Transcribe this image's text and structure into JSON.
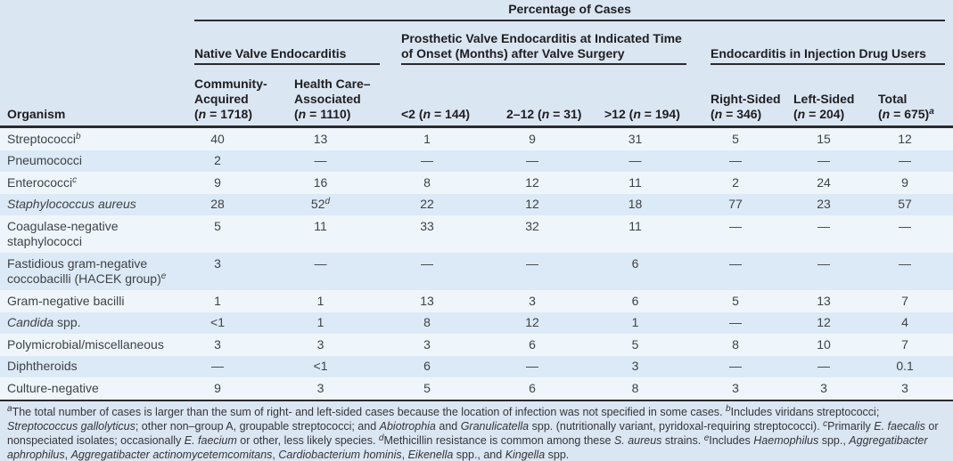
{
  "header": {
    "title": "Percentage of Cases",
    "organism_label": "Organism",
    "groups": [
      {
        "label": "Native Valve Endocarditis"
      },
      {
        "label": "Prosthetic Valve Endocarditis at Indicated Time of Onset (Months) after Valve Surgery"
      },
      {
        "label": "Endocarditis in Injection Drug Users"
      }
    ],
    "columns": [
      {
        "name_lines": [
          "Community-",
          "Acquired"
        ],
        "n": "1718",
        "inline": false,
        "sup": ""
      },
      {
        "name_lines": [
          "Health Care–",
          "Associated"
        ],
        "n": "1110",
        "inline": false,
        "sup": ""
      },
      {
        "name_lines": [
          "<2"
        ],
        "n": "144",
        "inline": true,
        "sup": ""
      },
      {
        "name_lines": [
          "2–12"
        ],
        "n": "31",
        "inline": true,
        "sup": ""
      },
      {
        "name_lines": [
          ">12"
        ],
        "n": "194",
        "inline": true,
        "sup": ""
      },
      {
        "name_lines": [
          "Right-Sided"
        ],
        "n": "346",
        "inline": false,
        "sup": ""
      },
      {
        "name_lines": [
          "Left-Sided"
        ],
        "n": "204",
        "inline": false,
        "sup": ""
      },
      {
        "name_lines": [
          "Total"
        ],
        "n": "675",
        "inline": false,
        "sup": "a"
      }
    ]
  },
  "rows": [
    {
      "name_lines": [
        [
          {
            "t": "Streptococci"
          },
          {
            "t": "b",
            "sup": true
          }
        ]
      ],
      "values": [
        "40",
        "13",
        "1",
        "9",
        "31",
        "5",
        "15",
        "12"
      ]
    },
    {
      "name_lines": [
        [
          {
            "t": "Pneumococci"
          }
        ]
      ],
      "values": [
        "2",
        "—",
        "—",
        "—",
        "—",
        "—",
        "—",
        "—"
      ]
    },
    {
      "name_lines": [
        [
          {
            "t": "Enterococci"
          },
          {
            "t": "c",
            "sup": true
          }
        ]
      ],
      "values": [
        "9",
        "16",
        "8",
        "12",
        "11",
        "2",
        "24",
        "9"
      ]
    },
    {
      "name_lines": [
        [
          {
            "t": "Staphylococcus aureus",
            "i": true
          }
        ]
      ],
      "values": [
        "28",
        {
          "v": "52",
          "sup": "d"
        },
        "22",
        "12",
        "18",
        "77",
        "23",
        "57"
      ]
    },
    {
      "name_lines": [
        [
          {
            "t": "Coagulase-negative"
          }
        ],
        [
          {
            "t": "staphylococci"
          }
        ]
      ],
      "values": [
        "5",
        "11",
        "33",
        "32",
        "11",
        "—",
        "—",
        "—"
      ]
    },
    {
      "name_lines": [
        [
          {
            "t": "Fastidious gram-negative"
          }
        ],
        [
          {
            "t": "coccobacilli (HACEK group)"
          },
          {
            "t": "e",
            "sup": true
          }
        ]
      ],
      "values": [
        "3",
        "—",
        "—",
        "—",
        "6",
        "—",
        "—",
        "—"
      ]
    },
    {
      "name_lines": [
        [
          {
            "t": "Gram-negative bacilli"
          }
        ]
      ],
      "values": [
        "1",
        "1",
        "13",
        "3",
        "6",
        "5",
        "13",
        "7"
      ]
    },
    {
      "name_lines": [
        [
          {
            "t": "Candida",
            "i": true
          },
          {
            "t": " spp."
          }
        ]
      ],
      "values": [
        "<1",
        "1",
        "8",
        "12",
        "1",
        "—",
        "12",
        "4"
      ]
    },
    {
      "name_lines": [
        [
          {
            "t": "Polymicrobial/miscellaneous"
          }
        ]
      ],
      "values": [
        "3",
        "3",
        "3",
        "6",
        "5",
        "8",
        "10",
        "7"
      ]
    },
    {
      "name_lines": [
        [
          {
            "t": "Diphtheroids"
          }
        ]
      ],
      "values": [
        "—",
        "<1",
        "6",
        "—",
        "3",
        "—",
        "—",
        "0.1"
      ]
    },
    {
      "name_lines": [
        [
          {
            "t": "Culture-negative"
          }
        ]
      ],
      "values": [
        "9",
        "3",
        "5",
        "6",
        "8",
        "3",
        "3",
        "3"
      ]
    }
  ],
  "footnotes": {
    "segments": [
      {
        "t": "a",
        "sup": true
      },
      {
        "t": "The total number of cases is larger than the sum of right- and left-sided cases because the location of infection was not specified in some cases.  "
      },
      {
        "t": "b",
        "sup": true
      },
      {
        "t": "Includes viridans streptococci; "
      },
      {
        "t": "Streptococcus gallolyticus",
        "i": true
      },
      {
        "t": "; other non–group A, groupable streptococci; and "
      },
      {
        "t": "Abiotrophia",
        "i": true
      },
      {
        "t": " and "
      },
      {
        "t": "Granulicatella",
        "i": true
      },
      {
        "t": " spp. (nutritionally variant, pyridoxal-requiring streptococci).  "
      },
      {
        "t": "c",
        "sup": true
      },
      {
        "t": "Primarily "
      },
      {
        "t": "E. faecalis",
        "i": true
      },
      {
        "t": " or nonspeciated isolates; occasionally "
      },
      {
        "t": "E. faecium",
        "i": true
      },
      {
        "t": " or other, less likely species.  "
      },
      {
        "t": "d",
        "sup": true
      },
      {
        "t": "Methicillin resistance is common among these "
      },
      {
        "t": "S. aureus",
        "i": true
      },
      {
        "t": " strains.  "
      },
      {
        "t": "e",
        "sup": true
      },
      {
        "t": "Includes "
      },
      {
        "t": "Haemophilus",
        "i": true
      },
      {
        "t": " spp., "
      },
      {
        "t": "Aggregatibacter aphrophilus",
        "i": true
      },
      {
        "t": ", "
      },
      {
        "t": "Aggregatibacter actinomycetemcomitans",
        "i": true
      },
      {
        "t": ", "
      },
      {
        "t": "Cardiobacterium hominis",
        "i": true
      },
      {
        "t": ", "
      },
      {
        "t": "Eikenella",
        "i": true
      },
      {
        "t": " spp., and "
      },
      {
        "t": "Kingella",
        "i": true
      },
      {
        "t": " spp."
      }
    ]
  },
  "colors": {
    "page_background": "#dbe6f3",
    "row_pale": "#eff6fb",
    "row_blue": "#dce9f6",
    "rule_line": "#2a2a2e",
    "header_text": "#1e1e20",
    "body_text": "#3e4245"
  }
}
